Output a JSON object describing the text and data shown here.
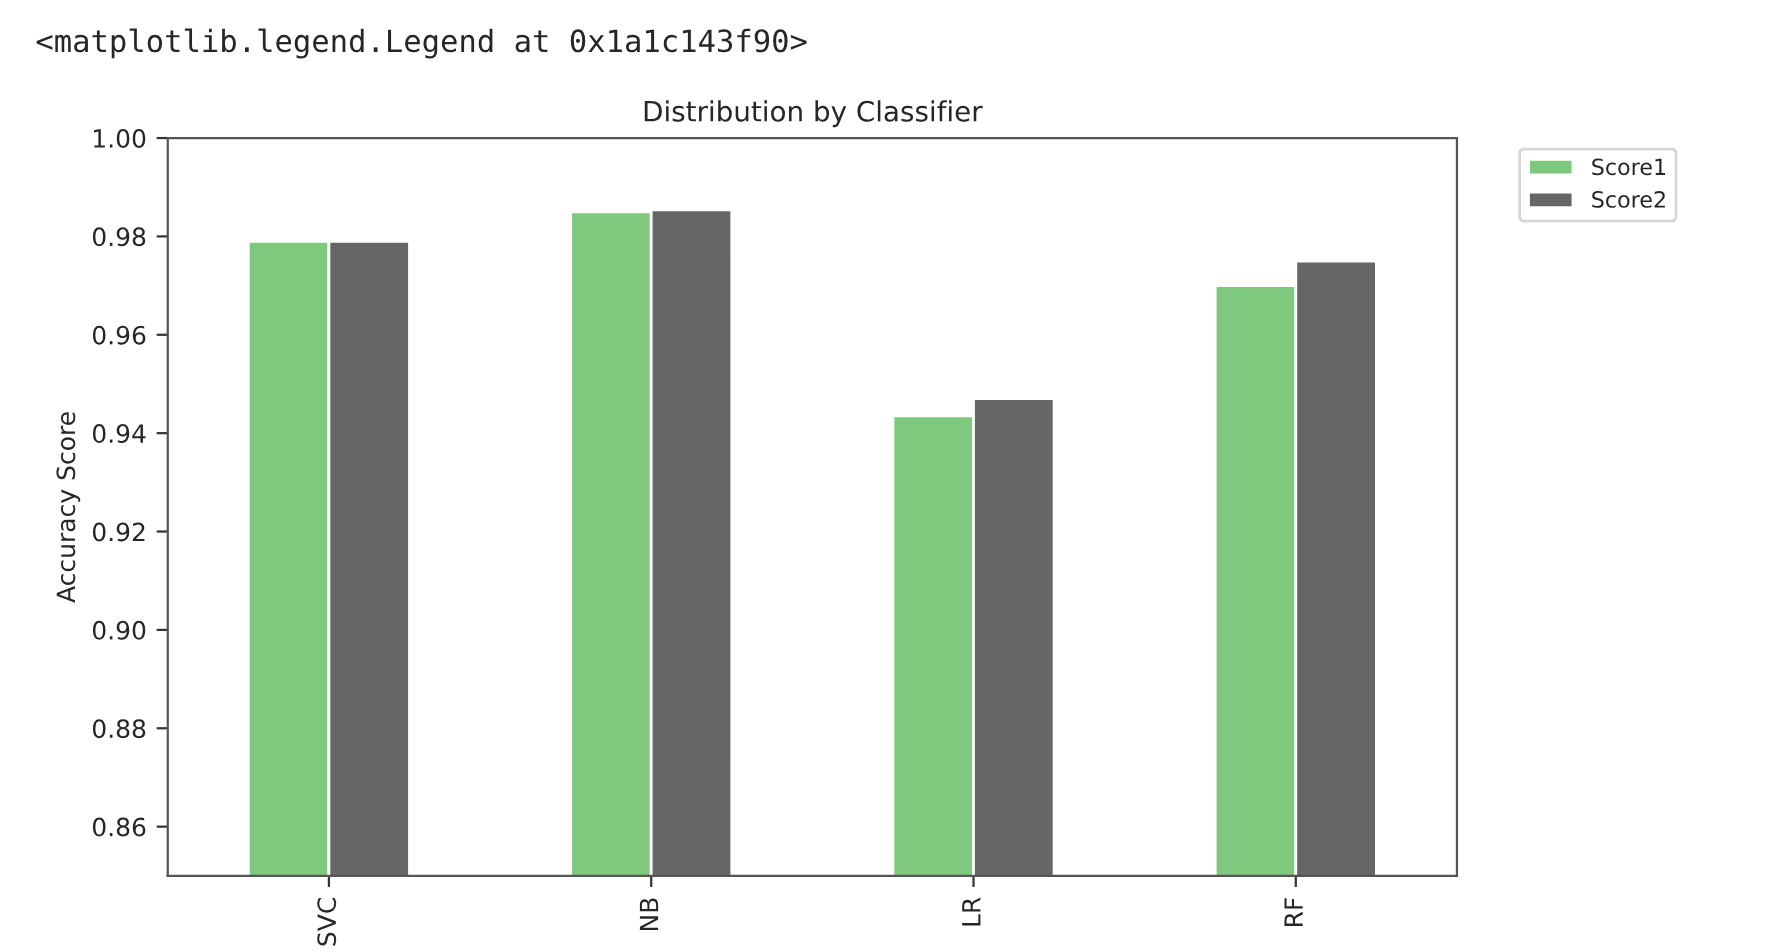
{
  "chart_data": {
    "type": "bar",
    "title": "Distribution by Classifier",
    "ylabel": "Accuracy Score",
    "annotations": [
      "<matplotlib.legend.Legend at 0x1a1c143f90>"
    ],
    "categories": [
      "SVC",
      "NB",
      "LR",
      "RF"
    ],
    "series": [
      {
        "name": "Score1",
        "color": "#7fc97f",
        "values": [
          0.979,
          0.985,
          0.9435,
          0.97
        ]
      },
      {
        "name": "Score2",
        "color": "#666666",
        "values": [
          0.979,
          0.9854,
          0.947,
          0.975
        ]
      }
    ],
    "ylim": [
      0.85,
      1.0
    ],
    "yticks": [
      0.86,
      0.88,
      {
        "value": 0.9,
        "label": "0.90"
      },
      0.92,
      0.94,
      0.96,
      0.98,
      {
        "value": 1.0,
        "label": "1.00"
      }
    ],
    "grid": false,
    "legend": "top right"
  }
}
